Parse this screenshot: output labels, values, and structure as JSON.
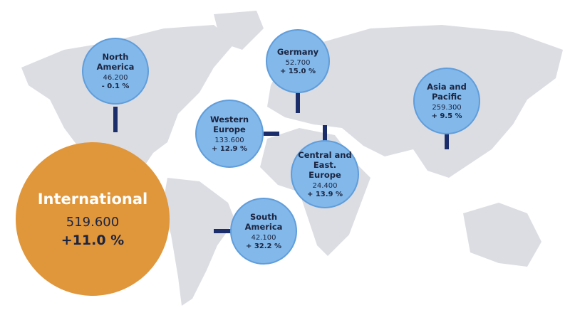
{
  "international": {
    "name": "International",
    "value": "519.600",
    "change": "+11.0 %"
  },
  "regions": [
    {
      "name": "North America",
      "value": "46.200",
      "change": "- 0.1 %"
    },
    {
      "name": "Germany",
      "value": "52.700",
      "change": "+ 15.0 %"
    },
    {
      "name": "Asia and Pacific",
      "value": "259.300",
      "change": "+ 9.5 %"
    },
    {
      "name": "Western Europe",
      "value": "133.600",
      "change": "+ 12.9 %"
    },
    {
      "name": "Central and East. Europe",
      "value": "24.400",
      "change": "+ 13.9 %"
    },
    {
      "name": "South America",
      "value": "42.100",
      "change": "+ 32.2 %"
    }
  ]
}
